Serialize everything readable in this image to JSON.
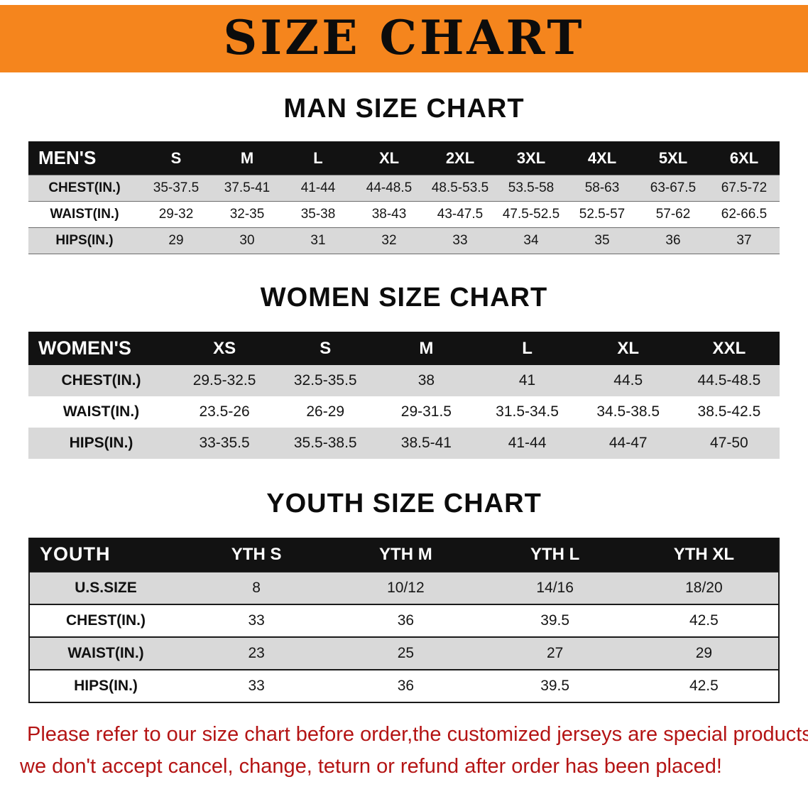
{
  "banner": {
    "title": "SIZE CHART",
    "bg_color": "#F5851D",
    "text_color": "#0C0C0C"
  },
  "chart_data": [
    {
      "type": "table",
      "title": "MAN SIZE CHART",
      "columns": [
        "MEN'S",
        "S",
        "M",
        "L",
        "XL",
        "2XL",
        "3XL",
        "4XL",
        "5XL",
        "6XL"
      ],
      "rows": [
        [
          "CHEST(IN.)",
          "35-37.5",
          "37.5-41",
          "41-44",
          "44-48.5",
          "48.5-53.5",
          "53.5-58",
          "58-63",
          "63-67.5",
          "67.5-72"
        ],
        [
          "WAIST(IN.)",
          "29-32",
          "32-35",
          "35-38",
          "38-43",
          "43-47.5",
          "47.5-52.5",
          "52.5-57",
          "57-62",
          "62-66.5"
        ],
        [
          "HIPS(IN.)",
          "29",
          "30",
          "31",
          "32",
          "33",
          "34",
          "35",
          "36",
          "37"
        ]
      ]
    },
    {
      "type": "table",
      "title": "WOMEN SIZE CHART",
      "columns": [
        "WOMEN'S",
        "XS",
        "S",
        "M",
        "L",
        "XL",
        "XXL"
      ],
      "rows": [
        [
          "CHEST(IN.)",
          "29.5-32.5",
          "32.5-35.5",
          "38",
          "41",
          "44.5",
          "44.5-48.5"
        ],
        [
          "WAIST(IN.)",
          "23.5-26",
          "26-29",
          "29-31.5",
          "31.5-34.5",
          "34.5-38.5",
          "38.5-42.5"
        ],
        [
          "HIPS(IN.)",
          "33-35.5",
          "35.5-38.5",
          "38.5-41",
          "41-44",
          "44-47",
          "47-50"
        ]
      ]
    },
    {
      "type": "table",
      "title": "YOUTH SIZE CHART",
      "columns": [
        "YOUTH",
        "YTH S",
        "YTH M",
        "YTH L",
        "YTH XL"
      ],
      "rows": [
        [
          "U.S.SIZE",
          "8",
          "10/12",
          "14/16",
          "18/20"
        ],
        [
          "CHEST(IN.)",
          "33",
          "36",
          "39.5",
          "42.5"
        ],
        [
          "WAIST(IN.)",
          "23",
          "25",
          "27",
          "29"
        ],
        [
          "HIPS(IN.)",
          "33",
          "36",
          "39.5",
          "42.5"
        ]
      ]
    }
  ],
  "footer": {
    "line1": "Please refer to our size chart before order,the customized jerseys are special products,",
    "line2": "we don't accept cancel, change, teturn or refund after order has been placed!",
    "text_color": "#B41414"
  }
}
